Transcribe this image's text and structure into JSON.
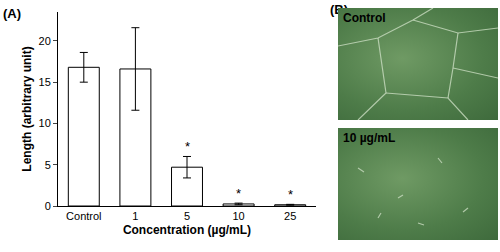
{
  "chart_data": {
    "type": "bar",
    "title": "(A)",
    "categories": [
      "Control",
      "1",
      "5",
      "10",
      "25"
    ],
    "values": [
      16.8,
      16.6,
      4.7,
      0.25,
      0.15
    ],
    "errors": [
      1.8,
      5.0,
      1.3,
      0.1,
      0.05
    ],
    "colors": [
      "#c8c8c8",
      "#4a4a4a",
      "#4a4a4a",
      "#4a4a4a",
      "#4a4a4a"
    ],
    "x_label": "Concentration (µg/mL)",
    "y_label": "Length (arbitrary unit)",
    "ylim": [
      0,
      23.5
    ],
    "yticks": [
      0,
      5,
      10,
      15,
      20
    ],
    "grid": false,
    "annotations": [
      {
        "category": "5",
        "text": "*"
      },
      {
        "category": "10",
        "text": "*"
      },
      {
        "category": "25",
        "text": "*"
      }
    ]
  },
  "panel_b": {
    "label": "(B)",
    "images": [
      {
        "label": "Control"
      },
      {
        "label": "10 µg/mL"
      }
    ]
  }
}
